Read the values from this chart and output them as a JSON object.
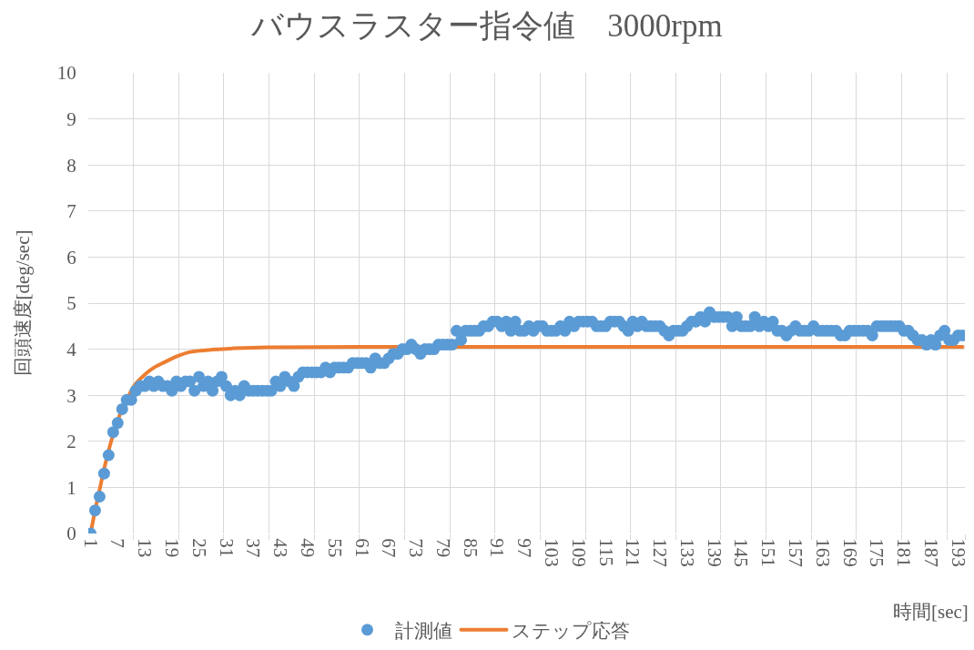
{
  "chart_data": {
    "type": "scatter",
    "title": "バウスラスター指令値　3000rpm",
    "xlabel": "時間[sec]",
    "ylabel": "回頭速度[deg/sec]",
    "x": [
      1,
      2,
      3,
      4,
      5,
      6,
      7,
      8,
      9,
      10,
      11,
      12,
      13,
      14,
      15,
      16,
      17,
      18,
      19,
      20,
      21,
      22,
      23,
      24,
      25,
      26,
      27,
      28,
      29,
      30,
      31,
      32,
      33,
      34,
      35,
      36,
      37,
      38,
      39,
      40,
      41,
      42,
      43,
      44,
      45,
      46,
      47,
      48,
      49,
      50,
      51,
      52,
      53,
      54,
      55,
      56,
      57,
      58,
      59,
      60,
      61,
      62,
      63,
      64,
      65,
      66,
      67,
      68,
      69,
      70,
      71,
      72,
      73,
      74,
      75,
      76,
      77,
      78,
      79,
      80,
      81,
      82,
      83,
      84,
      85,
      86,
      87,
      88,
      89,
      90,
      91,
      92,
      93,
      94,
      95,
      96,
      97,
      98,
      99,
      100,
      101,
      102,
      103,
      104,
      105,
      106,
      107,
      108,
      109,
      110,
      111,
      112,
      113,
      114,
      115,
      116,
      117,
      118,
      119,
      120,
      121,
      122,
      123,
      124,
      125,
      126,
      127,
      128,
      129,
      130,
      131,
      132,
      133,
      134,
      135,
      136,
      137,
      138,
      139,
      140,
      141,
      142,
      143,
      144,
      145,
      146,
      147,
      148,
      149,
      150,
      151,
      152,
      153,
      154,
      155,
      156,
      157,
      158,
      159,
      160,
      161,
      162,
      163,
      164,
      165,
      166,
      167,
      168,
      169,
      170,
      171,
      172,
      173,
      174,
      175,
      176,
      177,
      178,
      179,
      180,
      181,
      182,
      183,
      184,
      185,
      186,
      187,
      188,
      189,
      190,
      191,
      192,
      193,
      194
    ],
    "series": [
      {
        "name": "計測値",
        "marker": "circle",
        "color": "#5b9bd5",
        "values": [
          0,
          0.5,
          0.8,
          1.3,
          1.7,
          2.2,
          2.4,
          2.7,
          2.9,
          2.9,
          3.1,
          3.2,
          3.2,
          3.3,
          3.2,
          3.3,
          3.2,
          3.2,
          3.1,
          3.3,
          3.2,
          3.3,
          3.3,
          3.1,
          3.4,
          3.2,
          3.3,
          3.1,
          3.3,
          3.4,
          3.2,
          3.0,
          3.1,
          3.0,
          3.2,
          3.1,
          3.1,
          3.1,
          3.1,
          3.1,
          3.1,
          3.3,
          3.2,
          3.4,
          3.3,
          3.2,
          3.4,
          3.5,
          3.5,
          3.5,
          3.5,
          3.5,
          3.6,
          3.5,
          3.6,
          3.6,
          3.6,
          3.6,
          3.7,
          3.7,
          3.7,
          3.7,
          3.6,
          3.8,
          3.7,
          3.7,
          3.8,
          3.9,
          3.9,
          4.0,
          4.0,
          4.1,
          4.0,
          3.9,
          4.0,
          4.0,
          4.0,
          4.1,
          4.1,
          4.1,
          4.1,
          4.4,
          4.2,
          4.4,
          4.4,
          4.4,
          4.4,
          4.5,
          4.5,
          4.6,
          4.6,
          4.5,
          4.6,
          4.4,
          4.6,
          4.4,
          4.4,
          4.5,
          4.4,
          4.5,
          4.5,
          4.4,
          4.4,
          4.4,
          4.5,
          4.4,
          4.6,
          4.5,
          4.6,
          4.6,
          4.6,
          4.6,
          4.5,
          4.5,
          4.5,
          4.6,
          4.6,
          4.6,
          4.5,
          4.4,
          4.6,
          4.5,
          4.6,
          4.5,
          4.5,
          4.5,
          4.5,
          4.4,
          4.3,
          4.4,
          4.4,
          4.4,
          4.5,
          4.6,
          4.6,
          4.7,
          4.6,
          4.8,
          4.7,
          4.7,
          4.7,
          4.7,
          4.5,
          4.7,
          4.5,
          4.5,
          4.5,
          4.7,
          4.5,
          4.6,
          4.5,
          4.6,
          4.4,
          4.4,
          4.3,
          4.4,
          4.5,
          4.4,
          4.4,
          4.4,
          4.5,
          4.4,
          4.4,
          4.4,
          4.4,
          4.4,
          4.3,
          4.3,
          4.4,
          4.4,
          4.4,
          4.4,
          4.4,
          4.3,
          4.5,
          4.5,
          4.5,
          4.5,
          4.5,
          4.5,
          4.4,
          4.4,
          4.3,
          4.2,
          4.2,
          4.1,
          4.2,
          4.1,
          4.3,
          4.4,
          4.2,
          4.2,
          4.3,
          4.3
        ]
      },
      {
        "name": "ステップ応答",
        "type": "line",
        "line_style": "solid",
        "color": "#ed7d31",
        "x": [
          1,
          2,
          3,
          4,
          5,
          6,
          7,
          8,
          9,
          10,
          11,
          13,
          15,
          17,
          20,
          23,
          28,
          33,
          40,
          60,
          194
        ],
        "values": [
          0,
          0.5,
          0.95,
          1.4,
          1.8,
          2.15,
          2.45,
          2.7,
          2.9,
          3.1,
          3.25,
          3.45,
          3.6,
          3.7,
          3.84,
          3.94,
          3.99,
          4.02,
          4.04,
          4.05,
          4.05
        ]
      }
    ],
    "xlim": [
      0.5,
      194.5
    ],
    "xticks": [
      1,
      7,
      {
        "value": 10.5,
        "label": null
      },
      13,
      19,
      {
        "value": 20.5,
        "label": null
      },
      25,
      {
        "value": 30.5,
        "label": null
      },
      31,
      37,
      {
        "value": 40.5,
        "label": null
      },
      43,
      49,
      {
        "value": 50.5,
        "label": null
      },
      55,
      {
        "value": 60.5,
        "label": null
      },
      61,
      67,
      {
        "value": 70.5,
        "label": null
      },
      73,
      79,
      {
        "value": 80.5,
        "label": null
      },
      85,
      {
        "value": 90.5,
        "label": null
      },
      91,
      97,
      {
        "value": 100.5,
        "label": null
      },
      103,
      109,
      {
        "value": 110.5,
        "label": null
      },
      115,
      {
        "value": 120.5,
        "label": null
      },
      121,
      127,
      {
        "value": 130.5,
        "label": null
      },
      133,
      139,
      {
        "value": 140.5,
        "label": null
      },
      145,
      {
        "value": 150.5,
        "label": null
      },
      151,
      157,
      {
        "value": 160.5,
        "label": null
      },
      163,
      169,
      {
        "value": 170.5,
        "label": null
      },
      175,
      {
        "value": 180.5,
        "label": null
      },
      181,
      187,
      {
        "value": 190.5,
        "label": null
      },
      193,
      {
        "value": 194.5,
        "label": null
      }
    ],
    "ylim": [
      0,
      10
    ],
    "yticks": [
      0,
      1,
      2,
      3,
      4,
      5,
      6,
      7,
      8,
      9,
      10
    ],
    "grid": true,
    "legend": "bottom"
  }
}
